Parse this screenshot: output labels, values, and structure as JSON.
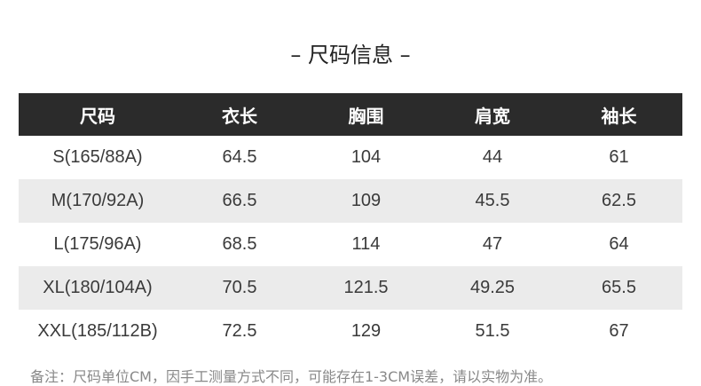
{
  "title": "– 尺码信息 –",
  "headers": [
    "尺码",
    "衣长",
    "胸围",
    "肩宽",
    "袖长"
  ],
  "rows": [
    [
      "S(165/88A)",
      "64.5",
      "104",
      "44",
      "61"
    ],
    [
      "M(170/92A)",
      "66.5",
      "109",
      "45.5",
      "62.5"
    ],
    [
      "L(175/96A)",
      "68.5",
      "114",
      "47",
      "64"
    ],
    [
      "XL(180/104A)",
      "70.5",
      "121.5",
      "49.25",
      "65.5"
    ],
    [
      "XXL(185/112B)",
      "72.5",
      "129",
      "51.5",
      "67"
    ]
  ],
  "note": "备注：尺码单位CM，因手工测量方式不同，可能存在1-3CM误差，请以实物为准。",
  "colors": {
    "header_bg": "#2b2b2b",
    "alt_row": "#ebebeb"
  }
}
